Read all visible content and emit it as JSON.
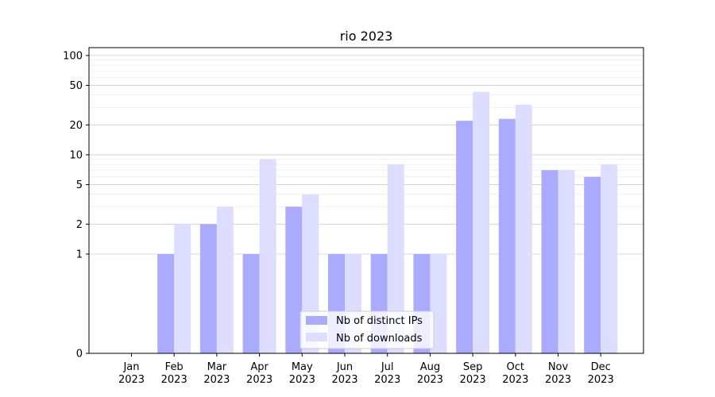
{
  "chart_data": {
    "type": "bar",
    "title": "rio 2023",
    "xlabel": "",
    "ylabel": "",
    "y_scale": "symlog",
    "ylim": [
      0,
      120
    ],
    "yticks": [
      0,
      1,
      2,
      5,
      10,
      20,
      50,
      100
    ],
    "ytick_labels": [
      "0",
      "1",
      "2",
      "5",
      "10",
      "20",
      "50",
      "100"
    ],
    "grid": "horizontal",
    "legend_position": "bottom-center",
    "categories": [
      {
        "month": "Jan",
        "year": "2023"
      },
      {
        "month": "Feb",
        "year": "2023"
      },
      {
        "month": "Mar",
        "year": "2023"
      },
      {
        "month": "Apr",
        "year": "2023"
      },
      {
        "month": "May",
        "year": "2023"
      },
      {
        "month": "Jun",
        "year": "2023"
      },
      {
        "month": "Jul",
        "year": "2023"
      },
      {
        "month": "Aug",
        "year": "2023"
      },
      {
        "month": "Sep",
        "year": "2023"
      },
      {
        "month": "Oct",
        "year": "2023"
      },
      {
        "month": "Nov",
        "year": "2023"
      },
      {
        "month": "Dec",
        "year": "2023"
      }
    ],
    "series": [
      {
        "name": "Nb of distinct IPs",
        "color": "#aaaaff",
        "values": [
          0,
          1,
          2,
          1,
          3,
          1,
          1,
          1,
          22,
          23,
          7,
          6
        ]
      },
      {
        "name": "Nb of downloads",
        "color": "#ddddff",
        "values": [
          0,
          2,
          3,
          9,
          4,
          1,
          8,
          1,
          43,
          32,
          7,
          8
        ]
      }
    ]
  }
}
